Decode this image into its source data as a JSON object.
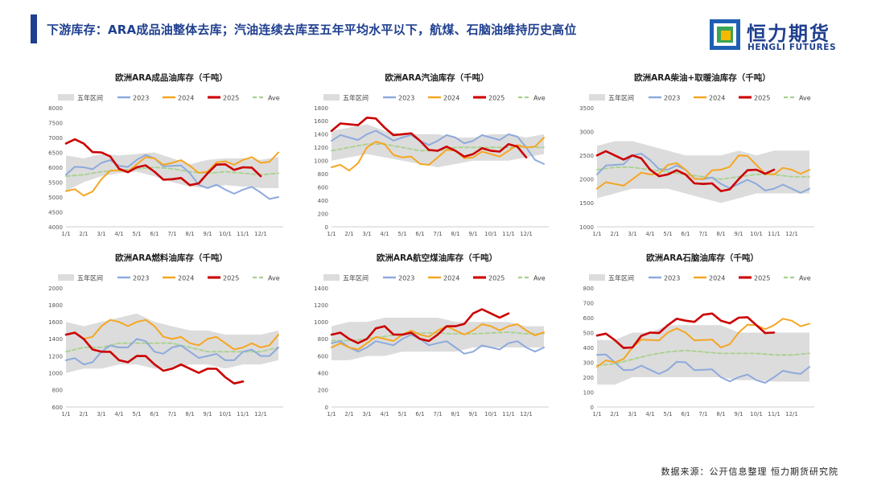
{
  "header": {
    "title": "下游库存：ARA成品油整体去库；汽油连续去库至五年平均水平以下，航煤、石脑油维持历史高位",
    "logo_cn": "恒力期货",
    "logo_en": "HENGLI FUTURES"
  },
  "footer": {
    "source": "数据来源：公开信息整理  恒力期货研究院"
  },
  "colors": {
    "band": "#dcdcdc",
    "y2023": "#8eaadc",
    "y2024": "#f5a623",
    "y2025": "#cc0000",
    "ave": "#a9d18e",
    "brand": "#1f3f8f"
  },
  "chart_data": [
    {
      "type": "line",
      "title": "欧洲ARA成品油库存（千吨）",
      "legend": [
        "五年区间",
        "2023",
        "2024",
        "2025",
        "Ave"
      ],
      "x_ticks": [
        "1/1",
        "2/1",
        "3/1",
        "4/1",
        "5/1",
        "6/1",
        "7/1",
        "8/1",
        "9/1",
        "10/1",
        "11/1",
        "12/1"
      ],
      "ylim": [
        4000,
        8000
      ],
      "y_ticks": [
        "4000",
        "4500",
        "5000",
        "5500",
        "6000",
        "6500",
        "7000",
        "7500",
        "8000"
      ],
      "band_low": [
        5200,
        5500,
        5700,
        5800,
        5850,
        5700,
        5500,
        5350,
        5300,
        5400,
        5350,
        5300,
        5300
      ],
      "band_high": [
        6400,
        6300,
        6450,
        6400,
        6450,
        6500,
        6300,
        6100,
        6250,
        6300,
        6300,
        6250,
        6350
      ],
      "series": [
        {
          "name": "2023",
          "values": [
            5750,
            6000,
            6150,
            6050,
            6250,
            6300,
            6050,
            5800,
            5300,
            5250,
            5250,
            5150,
            5000
          ]
        },
        {
          "name": "2024",
          "values": [
            5200,
            5050,
            5600,
            5900,
            6100,
            6300,
            6150,
            6050,
            5850,
            6200,
            6250,
            6150,
            6500
          ]
        },
        {
          "name": "2025",
          "values": [
            6800,
            6800,
            6500,
            5950,
            6000,
            5850,
            5600,
            5400,
            5800,
            6100,
            6000,
            5700
          ]
        },
        {
          "name": "Ave",
          "values": [
            5700,
            5750,
            5850,
            5900,
            5950,
            6000,
            5950,
            5850,
            5800,
            5850,
            5800,
            5750,
            5800
          ]
        }
      ]
    },
    {
      "type": "line",
      "title": "欧洲ARA汽油库存（千吨）",
      "legend": [
        "五年区间",
        "2023",
        "2024",
        "2025",
        "Ave"
      ],
      "x_ticks": [
        "1/1",
        "2/1",
        "3/1",
        "4/1",
        "5/1",
        "6/1",
        "7/1",
        "8/1",
        "9/1",
        "10/1",
        "11/1",
        "12/1"
      ],
      "ylim": [
        0,
        1800
      ],
      "y_ticks": [
        "0",
        "200",
        "400",
        "600",
        "800",
        "1000",
        "1200",
        "1400",
        "1600",
        "1800"
      ],
      "band_low": [
        1000,
        1050,
        1100,
        1050,
        1000,
        950,
        900,
        950,
        1000,
        1000,
        1000,
        1050,
        1100
      ],
      "band_high": [
        1450,
        1500,
        1550,
        1450,
        1400,
        1400,
        1400,
        1350,
        1350,
        1400,
        1400,
        1350,
        1400
      ],
      "series": [
        {
          "name": "2023",
          "values": [
            1300,
            1350,
            1400,
            1380,
            1350,
            1300,
            1300,
            1350,
            1300,
            1350,
            1400,
            1200,
            950
          ]
        },
        {
          "name": "2024",
          "values": [
            900,
            850,
            1200,
            1250,
            1050,
            950,
            1050,
            1150,
            1050,
            1100,
            1150,
            1200,
            1350
          ]
        },
        {
          "name": "2025",
          "values": [
            1450,
            1550,
            1650,
            1500,
            1400,
            1300,
            1150,
            1150,
            1100,
            1150,
            1250,
            1050
          ]
        },
        {
          "name": "Ave",
          "values": [
            1150,
            1200,
            1250,
            1250,
            1200,
            1150,
            1150,
            1200,
            1200,
            1200,
            1200,
            1200,
            1200
          ]
        }
      ]
    },
    {
      "type": "line",
      "title": "欧洲ARA柴油+取暖油库存（千吨）",
      "legend": [
        "五年区间",
        "2023",
        "2024",
        "2025",
        "Ave"
      ],
      "x_ticks": [
        "1/1",
        "2/1",
        "3/1",
        "4/1",
        "5/1",
        "6/1",
        "7/1",
        "8/1",
        "9/1",
        "10/1",
        "11/1",
        "12/1"
      ],
      "ylim": [
        1000,
        3500
      ],
      "y_ticks": [
        "1000",
        "1500",
        "2000",
        "2500",
        "3000",
        "3500"
      ],
      "band_low": [
        1600,
        1700,
        1800,
        1800,
        1800,
        1700,
        1600,
        1500,
        1600,
        1700,
        1700,
        1700,
        1700
      ],
      "band_high": [
        2700,
        2800,
        2800,
        2700,
        2600,
        2500,
        2500,
        2500,
        2600,
        2500,
        2600,
        2600,
        2600
      ],
      "series": [
        {
          "name": "2023",
          "values": [
            2100,
            2300,
            2500,
            2400,
            2200,
            2200,
            2000,
            1900,
            1900,
            1900,
            1800,
            1800,
            1800
          ]
        },
        {
          "name": "2024",
          "values": [
            1800,
            1900,
            2000,
            2100,
            2300,
            2200,
            2000,
            2200,
            2500,
            2300,
            2100,
            2200,
            2200
          ]
        },
        {
          "name": "2025",
          "values": [
            2500,
            2500,
            2500,
            2200,
            2100,
            2100,
            1900,
            1750,
            2000,
            2200,
            2200
          ]
        },
        {
          "name": "Ave",
          "values": [
            2200,
            2250,
            2250,
            2200,
            2150,
            2100,
            2050,
            2000,
            2050,
            2100,
            2100,
            2050,
            2050
          ]
        }
      ]
    },
    {
      "type": "line",
      "title": "欧洲ARA燃料油库存（千吨）",
      "legend": [
        "五年区间",
        "2023",
        "2024",
        "2025",
        "Ave"
      ],
      "x_ticks": [
        "1/1",
        "2/1",
        "3/1",
        "4/1",
        "5/1",
        "6/1",
        "7/1",
        "8/1",
        "9/1",
        "10/1",
        "11/1",
        "12/1"
      ],
      "ylim": [
        600,
        2000
      ],
      "y_ticks": [
        "600",
        "800",
        "1000",
        "1200",
        "1400",
        "1600",
        "1800",
        "2000"
      ],
      "band_low": [
        1000,
        1050,
        1050,
        1100,
        1100,
        1050,
        1050,
        1100,
        1100,
        1050,
        1100,
        1100,
        1150
      ],
      "band_high": [
        1600,
        1550,
        1600,
        1650,
        1700,
        1600,
        1550,
        1500,
        1500,
        1450,
        1450,
        1450,
        1500
      ],
      "series": [
        {
          "name": "2023",
          "values": [
            1150,
            1100,
            1250,
            1300,
            1400,
            1250,
            1300,
            1250,
            1200,
            1150,
            1250,
            1200,
            1300
          ]
        },
        {
          "name": "2024",
          "values": [
            1450,
            1400,
            1550,
            1600,
            1600,
            1550,
            1400,
            1350,
            1400,
            1350,
            1300,
            1300,
            1450
          ]
        },
        {
          "name": "2025",
          "values": [
            1450,
            1400,
            1250,
            1150,
            1200,
            1100,
            1050,
            1050,
            1050,
            950,
            900
          ]
        },
        {
          "name": "Ave",
          "values": [
            1250,
            1300,
            1300,
            1350,
            1350,
            1350,
            1350,
            1300,
            1250,
            1250,
            1250,
            1250,
            1300
          ]
        }
      ]
    },
    {
      "type": "line",
      "title": "欧洲ARA航空煤油库存（千吨）",
      "legend": [
        "五年区间",
        "2023",
        "2024",
        "2025",
        "Ave"
      ],
      "x_ticks": [
        "1/1",
        "2/1",
        "3/1",
        "4/1",
        "5/1",
        "6/1",
        "7/1",
        "8/1",
        "9/1",
        "10/1",
        "11/1",
        "12/1"
      ],
      "ylim": [
        0,
        1400
      ],
      "y_ticks": [
        "0",
        "200",
        "400",
        "600",
        "800",
        "1000",
        "1200",
        "1400"
      ],
      "band_low": [
        550,
        550,
        600,
        600,
        650,
        650,
        650,
        650,
        700,
        700,
        700,
        700,
        700
      ],
      "band_high": [
        950,
        1000,
        1000,
        1050,
        1050,
        1050,
        1050,
        1000,
        1000,
        1000,
        1000,
        950,
        950
      ],
      "series": [
        {
          "name": "2023",
          "values": [
            750,
            700,
            700,
            750,
            800,
            800,
            750,
            700,
            650,
            700,
            750,
            700,
            700
          ]
        },
        {
          "name": "2024",
          "values": [
            700,
            700,
            750,
            800,
            850,
            850,
            900,
            900,
            900,
            950,
            950,
            900,
            880
          ]
        },
        {
          "name": "2025",
          "values": [
            850,
            800,
            800,
            950,
            850,
            800,
            850,
            950,
            1100,
            1100,
            1100
          ]
        },
        {
          "name": "Ave",
          "values": [
            780,
            780,
            800,
            830,
            860,
            870,
            870,
            860,
            860,
            870,
            880,
            860,
            860
          ]
        }
      ]
    },
    {
      "type": "line",
      "title": "欧洲ARA石脑油库存（千吨）",
      "legend": [
        "五年区间",
        "2023",
        "2024",
        "2025",
        "Ave"
      ],
      "x_ticks": [
        "1/1",
        "2/1",
        "3/1",
        "4/1",
        "5/1",
        "6/1",
        "7/1",
        "8/1",
        "9/1",
        "10/1",
        "11/1",
        "12/1"
      ],
      "ylim": [
        0,
        800
      ],
      "y_ticks": [
        "0",
        "100",
        "200",
        "300",
        "400",
        "500",
        "600",
        "700",
        "800"
      ],
      "band_low": [
        150,
        150,
        200,
        200,
        200,
        200,
        200,
        200,
        180,
        180,
        170,
        170,
        170
      ],
      "band_high": [
        450,
        450,
        500,
        500,
        550,
        550,
        550,
        550,
        500,
        500,
        500,
        500,
        500
      ],
      "series": [
        {
          "name": "2023",
          "values": [
            350,
            300,
            250,
            250,
            250,
            300,
            250,
            200,
            200,
            180,
            200,
            230,
            270
          ]
        },
        {
          "name": "2024",
          "values": [
            270,
            300,
            400,
            450,
            500,
            500,
            450,
            400,
            500,
            550,
            550,
            580,
            560
          ]
        },
        {
          "name": "2025",
          "values": [
            480,
            450,
            400,
            500,
            550,
            580,
            620,
            580,
            600,
            550,
            500
          ]
        },
        {
          "name": "Ave",
          "values": [
            280,
            290,
            320,
            350,
            370,
            380,
            370,
            360,
            360,
            360,
            350,
            350,
            360
          ]
        }
      ]
    }
  ]
}
